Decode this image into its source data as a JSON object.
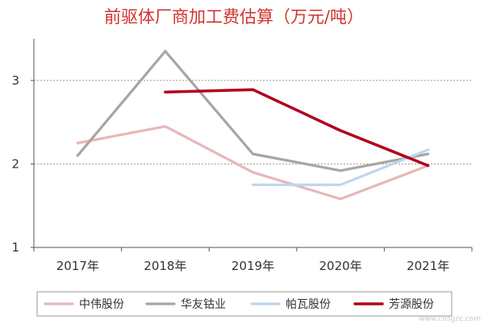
{
  "chart_data": {
    "type": "line",
    "title": "前驱体厂商加工费估算（万元/吨）",
    "xlabel": "",
    "ylabel": "",
    "categories": [
      "2017年",
      "2018年",
      "2019年",
      "2020年",
      "2021年"
    ],
    "ylim": [
      1,
      3.5
    ],
    "yticks": [
      "1",
      "2",
      "3"
    ],
    "grid": "horizontal dotted at 2 and 3",
    "legend_position": "bottom",
    "series": [
      {
        "name": "中伟股份",
        "color": "#e8b7b8",
        "values": [
          2.25,
          2.45,
          1.9,
          1.58,
          1.98
        ]
      },
      {
        "name": "华友钴业",
        "color": "#a6a6a6",
        "values": [
          2.1,
          3.35,
          2.12,
          1.92,
          2.12
        ]
      },
      {
        "name": "帕瓦股份",
        "color": "#bdd6ee",
        "values": [
          null,
          null,
          1.75,
          1.75,
          2.17
        ]
      },
      {
        "name": "芳源股份",
        "color": "#b2001f",
        "values": [
          null,
          2.86,
          2.89,
          2.4,
          1.98
        ]
      }
    ]
  },
  "watermark": "www.cnsgzc.com"
}
